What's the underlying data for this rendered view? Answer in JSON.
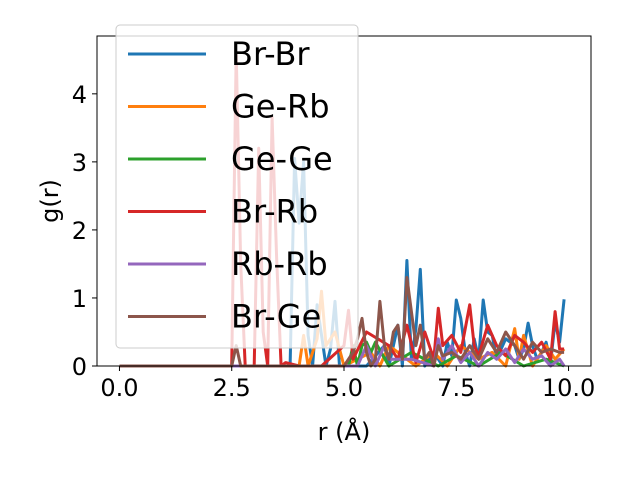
{
  "chart_data": {
    "type": "line",
    "title": "",
    "xlabel": "r (Å)",
    "ylabel": "g(r)",
    "xlim": [
      -0.5,
      10.5
    ],
    "ylim": [
      0,
      4.85
    ],
    "xticks": [
      "0.0",
      "2.5",
      "5.0",
      "7.5",
      "10.0"
    ],
    "xtick_values": [
      0,
      2.5,
      5,
      7.5,
      10
    ],
    "yticks": [
      "0",
      "1",
      "2",
      "3",
      "4"
    ],
    "ytick_values": [
      0,
      1,
      2,
      3,
      4
    ],
    "grid": false,
    "legend_position": "top-left",
    "series": [
      {
        "name": "Br-Br",
        "color": "#1f77b4",
        "x": [
          0,
          2.5,
          3.8,
          3.9,
          4.0,
          4.1,
          4.2,
          4.3,
          4.4,
          4.6,
          4.7,
          4.8,
          4.9,
          5.5,
          5.9,
          6.0,
          6.2,
          6.3,
          6.4,
          6.5,
          6.6,
          6.7,
          6.8,
          7.0,
          7.2,
          7.3,
          7.4,
          7.5,
          7.6,
          7.7,
          7.8,
          7.9,
          8.0,
          8.1,
          8.2,
          8.3,
          8.4,
          8.6,
          8.8,
          8.9,
          9.0,
          9.1,
          9.2,
          9.3,
          9.4,
          9.5,
          9.6,
          9.7,
          9.8,
          9.9
        ],
        "y": [
          0,
          0,
          0,
          3.05,
          2.1,
          3.0,
          0.45,
          0,
          0.9,
          0,
          0.25,
          0.95,
          0,
          0,
          0.3,
          0,
          0.6,
          0,
          1.55,
          0.1,
          0.55,
          1.42,
          0,
          0.2,
          0,
          0.35,
          0.15,
          0.97,
          0.7,
          0.2,
          0,
          0.4,
          0.1,
          0.97,
          0.5,
          0.45,
          0.1,
          0.4,
          0.3,
          0.1,
          0.25,
          0.63,
          0.3,
          0.1,
          0.2,
          0.35,
          0.05,
          0.65,
          0.35,
          0.98
        ]
      },
      {
        "name": "Ge-Rb",
        "color": "#ff7f0e",
        "x": [
          0,
          4.0,
          4.1,
          4.2,
          4.4,
          4.5,
          4.6,
          4.8,
          5.0,
          5.6,
          5.8,
          6.0,
          6.6,
          7.0,
          7.3,
          7.6,
          8.0,
          8.3,
          8.6,
          8.8,
          8.9,
          9.0,
          9.2,
          9.5,
          9.7,
          9.9
        ],
        "y": [
          0,
          0,
          0.45,
          0,
          0.4,
          1.1,
          0.3,
          0.5,
          0,
          0.2,
          0,
          0.3,
          0,
          0.2,
          0,
          0.3,
          0.1,
          0.2,
          0,
          0.55,
          0.1,
          0.45,
          0,
          0.3,
          0.1,
          0.25
        ]
      },
      {
        "name": "Ge-Ge",
        "color": "#2ca02c",
        "x": [
          0,
          5.1,
          5.2,
          5.3,
          5.4,
          5.5,
          5.6,
          5.7,
          6.0,
          6.5,
          7.1,
          7.5,
          8.0,
          8.5,
          9.0,
          9.5,
          9.9
        ],
        "y": [
          0,
          0,
          0.3,
          0,
          0.3,
          0.35,
          0.2,
          0.35,
          0,
          0.2,
          0,
          0.15,
          0,
          0.2,
          0,
          0.1,
          0
        ]
      },
      {
        "name": "Br-Rb",
        "color": "#d62728",
        "x": [
          0,
          2.5,
          2.6,
          2.7,
          2.8,
          3.0,
          3.1,
          3.2,
          3.3,
          3.4,
          3.5,
          3.6,
          3.7,
          4.0,
          4.5,
          5.0,
          5.1,
          5.2,
          5.5,
          6.0,
          6.2,
          6.4,
          6.6,
          6.8,
          7.0,
          7.1,
          7.2,
          7.4,
          7.6,
          7.8,
          7.9,
          8.0,
          8.2,
          8.4,
          8.6,
          8.8,
          9.0,
          9.2,
          9.4,
          9.6,
          9.7,
          9.8,
          9.9
        ],
        "y": [
          0,
          0,
          4.62,
          1.5,
          0,
          0,
          3.2,
          0.5,
          0,
          3.65,
          1.6,
          0,
          0.05,
          0,
          0,
          0.3,
          0.82,
          0.1,
          0.5,
          0.3,
          0.1,
          0.6,
          0.05,
          0.5,
          0.1,
          0.85,
          0.3,
          0.45,
          0.2,
          0.9,
          0.3,
          0.15,
          0.6,
          0.3,
          0.15,
          0.45,
          0.35,
          0.2,
          0.35,
          0.1,
          0.8,
          0.25,
          0.25
        ]
      },
      {
        "name": "Rb-Rb",
        "color": "#9467bd",
        "x": [
          0,
          5.3,
          5.5,
          5.7,
          5.9,
          6.0,
          6.5,
          7.0,
          7.1,
          7.2,
          7.4,
          7.6,
          7.8,
          8.0,
          8.2,
          8.4,
          8.6,
          8.8,
          9.0,
          9.2,
          9.4,
          9.6,
          9.8,
          9.9
        ],
        "y": [
          0,
          0,
          0.3,
          0,
          0.3,
          0.1,
          0.1,
          0,
          0.4,
          0.1,
          0.3,
          0.05,
          0.2,
          0,
          0.2,
          0.1,
          0.25,
          0.05,
          0.25,
          0.1,
          0.15,
          0,
          0.1,
          0
        ]
      },
      {
        "name": "Br-Ge",
        "color": "#8c564b",
        "x": [
          0,
          2.5,
          2.6,
          2.7,
          3.2,
          3.4,
          3.9,
          4.5,
          5.0,
          5.2,
          5.3,
          5.4,
          5.5,
          5.6,
          5.7,
          5.8,
          5.9,
          6.0,
          6.1,
          6.2,
          6.3,
          6.4,
          6.5,
          6.6,
          6.7,
          6.8,
          6.9,
          7.0,
          7.1,
          7.2,
          7.4,
          7.6,
          7.8,
          8.0,
          8.2,
          8.4,
          8.6,
          8.8,
          9.0,
          9.2,
          9.4,
          9.6,
          9.8,
          9.9
        ],
        "y": [
          0,
          0,
          0.3,
          0,
          0,
          0,
          0,
          0,
          0,
          0.2,
          0.4,
          0.7,
          0.2,
          0,
          0.1,
          0.95,
          0.3,
          0.1,
          0.5,
          0.6,
          0.1,
          1.3,
          0.8,
          0.3,
          0.6,
          0.1,
          0.2,
          0,
          0.3,
          0.15,
          0.2,
          0.1,
          0.3,
          0.1,
          0.4,
          0.2,
          0.5,
          0.3,
          0.1,
          0.35,
          0.2,
          0.25,
          0.2,
          0.2
        ]
      }
    ]
  }
}
